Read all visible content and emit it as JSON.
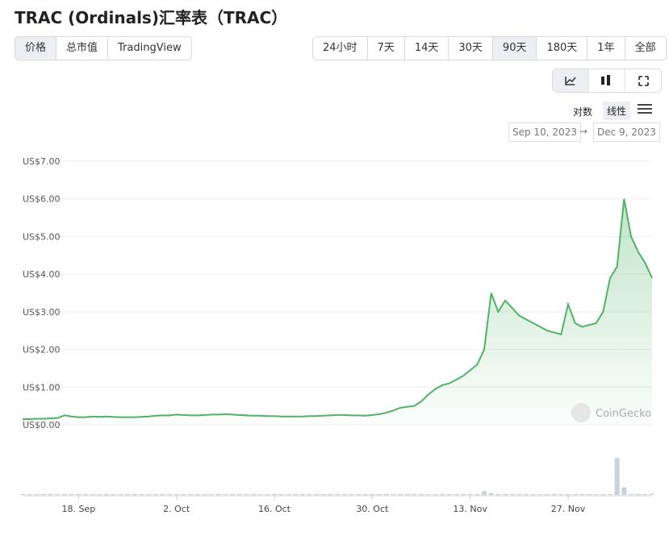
{
  "header": {
    "title": "TRAC (Ordinals)汇率表（TRAC）"
  },
  "controls": {
    "metric": [
      "价格",
      "总市值",
      "TradingView"
    ],
    "ranges": [
      "24小时",
      "7天",
      "14天",
      "30天",
      "90天",
      "180天",
      "1年",
      "全部"
    ],
    "scale": [
      "对数",
      "线性"
    ],
    "date_from": "Sep 10, 2023",
    "arrow": "→",
    "date_to": "Dec 9, 2023"
  },
  "watermark": "CoinGecko",
  "chart_data": {
    "type": "line",
    "categories": [
      null,
      null,
      null,
      null,
      null,
      null,
      null,
      null,
      "18. Sep",
      null,
      null,
      null,
      null,
      null,
      null,
      null,
      null,
      null,
      null,
      null,
      null,
      null,
      "2. Oct",
      null,
      null,
      null,
      null,
      null,
      null,
      null,
      null,
      null,
      null,
      null,
      null,
      null,
      "16. Oct",
      null,
      null,
      null,
      null,
      null,
      null,
      null,
      null,
      null,
      null,
      null,
      null,
      null,
      "30. Oct",
      null,
      null,
      null,
      null,
      null,
      null,
      null,
      null,
      null,
      null,
      null,
      null,
      null,
      "13. Nov",
      null,
      null,
      null,
      null,
      null,
      null,
      null,
      null,
      null,
      null,
      null,
      null,
      null,
      "27. Nov",
      null,
      null,
      null,
      null,
      null,
      null,
      null,
      null,
      null,
      null,
      null,
      null
    ],
    "series": [
      {
        "color": "#4fb266",
        "values": [
          0.15,
          0.15,
          0.16,
          0.16,
          0.17,
          0.18,
          0.25,
          0.22,
          0.2,
          0.2,
          0.22,
          0.21,
          0.22,
          0.21,
          0.2,
          0.2,
          0.2,
          0.21,
          0.22,
          0.24,
          0.25,
          0.25,
          0.27,
          0.26,
          0.25,
          0.25,
          0.26,
          0.27,
          0.27,
          0.28,
          0.27,
          0.26,
          0.25,
          0.24,
          0.24,
          0.23,
          0.23,
          0.22,
          0.22,
          0.22,
          0.22,
          0.23,
          0.23,
          0.24,
          0.25,
          0.26,
          0.26,
          0.25,
          0.25,
          0.24,
          0.26,
          0.28,
          0.32,
          0.38,
          0.45,
          0.48,
          0.5,
          0.62,
          0.8,
          0.95,
          1.05,
          1.1,
          1.2,
          1.3,
          1.45,
          1.6,
          2.0,
          3.5,
          3.0,
          3.3,
          3.1,
          2.9,
          2.8,
          2.7,
          2.6,
          2.5,
          2.45,
          2.4,
          3.2,
          2.7,
          2.6,
          2.65,
          2.7,
          3.0,
          3.9,
          4.2,
          6.0,
          5.0,
          4.6,
          4.3,
          3.9
        ]
      },
      {
        "color": "#c9d1dc",
        "axis": "y2",
        "values": [
          1,
          1,
          1,
          1,
          1,
          1,
          1,
          1,
          1,
          1,
          1,
          1,
          1,
          1,
          1,
          1,
          1,
          1,
          1,
          1,
          1,
          1,
          1,
          1,
          1,
          1,
          1,
          1,
          1,
          1,
          1,
          1,
          1,
          1,
          1,
          1,
          1,
          1,
          1,
          1,
          1,
          1,
          1,
          1,
          1,
          1,
          1,
          1,
          1,
          1,
          1,
          1,
          1,
          1,
          1,
          1,
          1,
          1,
          1,
          1,
          1,
          1,
          1,
          1,
          1,
          1,
          4,
          2,
          1,
          1,
          1,
          1,
          1,
          1,
          1,
          1,
          1,
          1,
          1,
          1,
          1,
          1,
          1,
          1,
          1,
          40,
          8,
          1,
          1,
          1,
          1
        ]
      }
    ],
    "ylim": [
      0,
      7
    ],
    "yticks": [
      {
        "value": 0,
        "label": "US$0.00"
      },
      {
        "value": 1,
        "label": "US$1.00"
      },
      {
        "value": 2,
        "label": "US$2.00"
      },
      {
        "value": 3,
        "label": "US$3.00"
      },
      {
        "value": 4,
        "label": "US$4.00"
      },
      {
        "value": 5,
        "label": "US$5.00"
      },
      {
        "value": 6,
        "label": "US$6.00"
      },
      {
        "value": 7,
        "label": "US$7.00"
      }
    ],
    "y2lim": [
      0,
      40
    ],
    "grid": true
  }
}
